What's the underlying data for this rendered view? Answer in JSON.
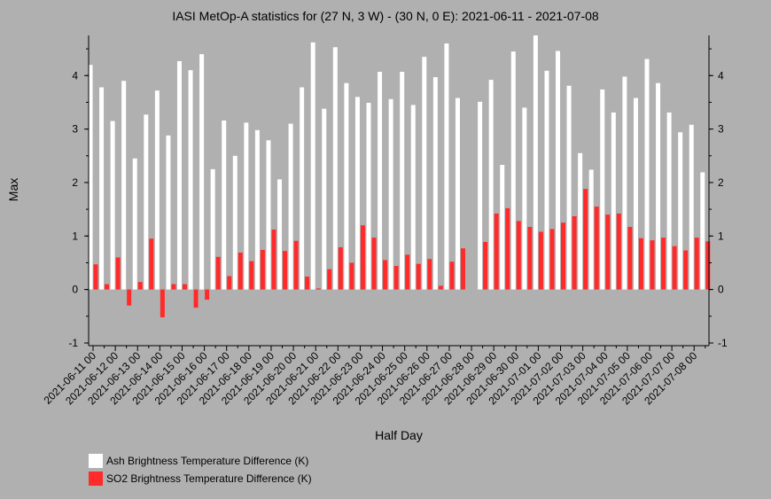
{
  "chart_data": {
    "type": "bar",
    "title": "IASI MetOp-A statistics for (27 N, 3 W) - (30 N, 0 E): 2021-06-11 - 2021-07-08",
    "xlabel": "Half Day",
    "ylabel": "Max",
    "ylim": [
      -1.05,
      4.75
    ],
    "yticks": [
      -1,
      0,
      1,
      2,
      3,
      4
    ],
    "grid": false,
    "legend_position": "bottom-left",
    "tick_labels": [
      "2021-06-11 00",
      "2021-06-12 00",
      "2021-06-13 00",
      "2021-06-14 00",
      "2021-06-15 00",
      "2021-06-16 00",
      "2021-06-17 00",
      "2021-06-18 00",
      "2021-06-19 00",
      "2021-06-20 00",
      "2021-06-21 00",
      "2021-06-22 00",
      "2021-06-23 00",
      "2021-06-24 00",
      "2021-06-25 00",
      "2021-06-26 00",
      "2021-06-27 00",
      "2021-06-28 00",
      "2021-06-29 00",
      "2021-06-30 00",
      "2021-07-01 00",
      "2021-07-02 00",
      "2021-07-03 00",
      "2021-07-04 00",
      "2021-07-05 00",
      "2021-07-06 00",
      "2021-07-07 00",
      "2021-07-08 00"
    ],
    "series": [
      {
        "name": "Ash Brightness Temperature Difference (K)",
        "color": "#ffffff",
        "values": [
          4.2,
          3.78,
          3.15,
          3.9,
          2.45,
          3.27,
          3.72,
          2.88,
          4.27,
          4.1,
          4.4,
          2.25,
          3.16,
          2.5,
          3.12,
          2.98,
          2.79,
          2.06,
          3.1,
          3.78,
          4.62,
          3.38,
          4.53,
          3.86,
          3.6,
          3.49,
          4.07,
          3.56,
          4.07,
          3.45,
          4.35,
          3.97,
          4.6,
          3.58,
          null,
          3.51,
          3.92,
          2.33,
          4.45,
          3.4,
          4.75,
          4.09,
          4.46,
          3.81,
          2.55,
          2.24,
          3.74,
          3.31,
          3.98,
          3.58,
          4.31,
          3.86,
          3.31,
          2.94,
          3.08,
          2.19
        ]
      },
      {
        "name": "SO2 Brightness Temperature Difference (K)",
        "color": "#ff2a2a",
        "values": [
          0.47,
          0.1,
          0.6,
          -0.3,
          0.14,
          0.95,
          -0.52,
          0.1,
          0.1,
          -0.34,
          -0.19,
          0.61,
          0.25,
          0.69,
          0.53,
          0.74,
          1.12,
          0.72,
          0.91,
          0.24,
          0.02,
          0.38,
          0.79,
          0.5,
          1.2,
          0.97,
          0.55,
          0.44,
          0.65,
          0.48,
          0.57,
          0.07,
          0.52,
          0.77,
          null,
          0.89,
          1.42,
          1.52,
          1.28,
          1.17,
          1.08,
          1.13,
          1.25,
          1.37,
          1.88,
          1.55,
          1.4,
          1.42,
          1.17,
          0.96,
          0.92,
          0.97,
          0.81,
          0.73,
          0.97,
          0.9
        ]
      }
    ]
  }
}
